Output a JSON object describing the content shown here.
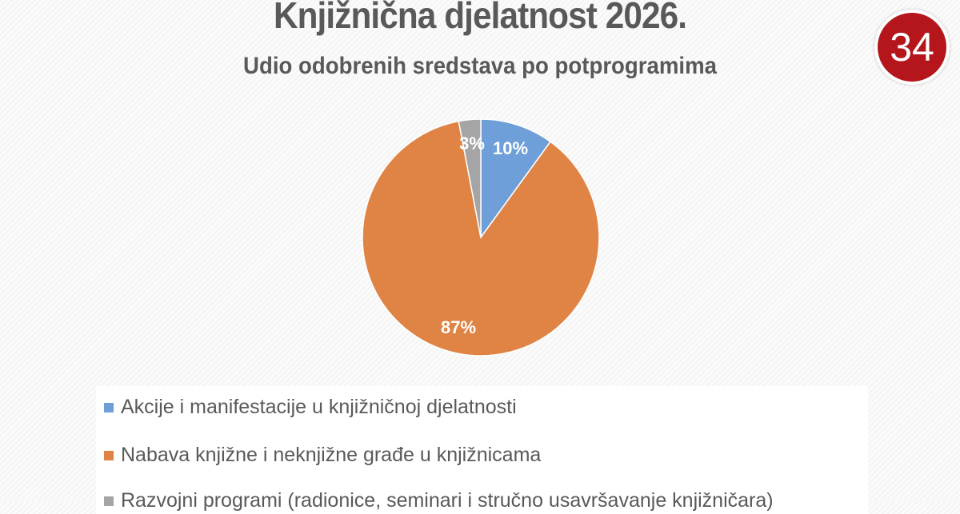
{
  "chart_data": {
    "type": "pie",
    "title": "Knjižnična djelatnost 2026.",
    "subtitle": "Udio odobrenih sredstava po potprogramima",
    "slices": [
      {
        "label": "Akcije i manifestacije u knjižničnoj djelatnosti",
        "value": 10,
        "data_label": "10%",
        "color": "#6f9fd8"
      },
      {
        "label": "Nabava knjižne i neknjižne građe u knjižnicama",
        "value": 87,
        "data_label": "87%",
        "color": "#df8444"
      },
      {
        "label": "Razvojni programi (radionice, seminari i stručno usavršavanje knjižničara)",
        "value": 3,
        "data_label": "3%",
        "color": "#a5a5a5"
      }
    ],
    "legend": "bottom"
  },
  "badge": "34"
}
